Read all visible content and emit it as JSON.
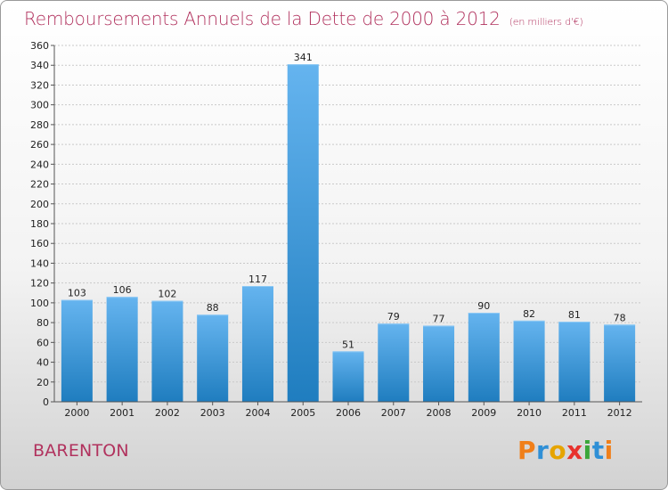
{
  "title": "Remboursements Annuels de la Dette de 2000 à 2012",
  "unit": "(en milliers d'€)",
  "commune": "BARENTON",
  "logo": {
    "letters": [
      "P",
      "r",
      "o",
      "x",
      "i",
      "t",
      "i"
    ],
    "colors": [
      "#f07f1a",
      "#2f8fd6",
      "#e6a400",
      "#e8322d",
      "#3aa63a",
      "#2f8fd6",
      "#f07f1a"
    ]
  },
  "colors": {
    "bar_light": "#63b2ee",
    "bar_dark": "#1f7ec0",
    "accent": "#b1325e"
  },
  "chart_data": {
    "type": "bar",
    "title": "Remboursements Annuels de la Dette de 2000 à 2012",
    "subtitle": "(en milliers d'€)",
    "xlabel": "",
    "ylabel": "",
    "categories": [
      "2000",
      "2001",
      "2002",
      "2003",
      "2004",
      "2005",
      "2006",
      "2007",
      "2008",
      "2009",
      "2010",
      "2011",
      "2012"
    ],
    "values": [
      103,
      106,
      102,
      88,
      117,
      341,
      51,
      79,
      77,
      90,
      82,
      81,
      78
    ],
    "ylim": [
      0,
      360
    ],
    "yticks": [
      0,
      20,
      40,
      60,
      80,
      100,
      120,
      140,
      160,
      180,
      200,
      220,
      240,
      260,
      280,
      300,
      320,
      340,
      360
    ],
    "grid": true
  }
}
